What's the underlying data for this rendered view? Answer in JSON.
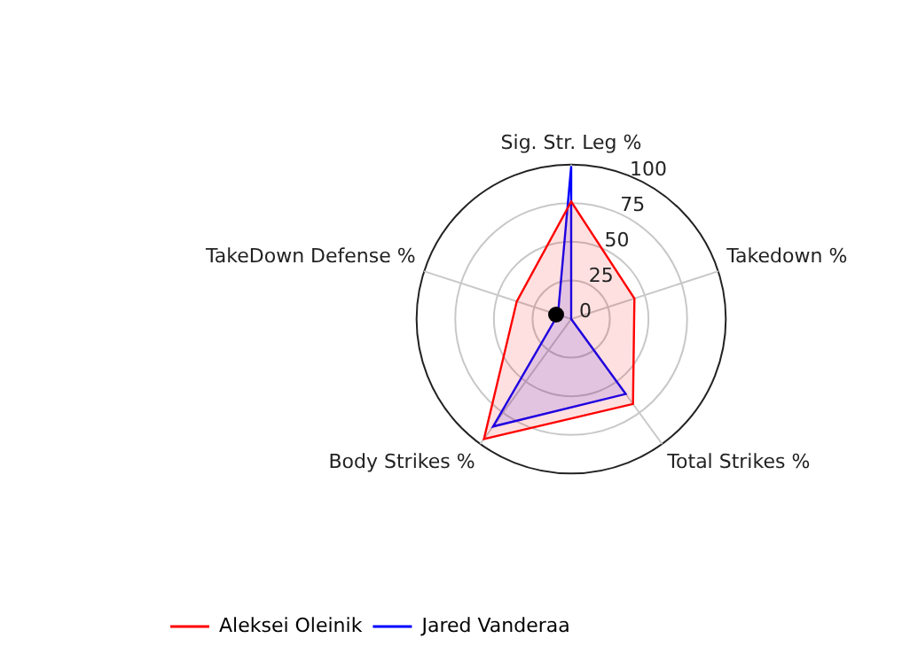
{
  "chart_data": {
    "type": "radar",
    "categories": [
      "Sig. Str. Leg %",
      "Takedown %",
      "Total Strikes %",
      "Body Strikes %",
      "TakeDown Defense %"
    ],
    "series": [
      {
        "name": "Aleksei Oleinik",
        "color": "#ff0000",
        "values": [
          76,
          43,
          68,
          96,
          37
        ]
      },
      {
        "name": "Jared Vanderaa",
        "color": "#0000ff",
        "values": [
          99,
          0,
          60,
          86,
          9
        ]
      }
    ],
    "ylim": [
      0,
      100
    ],
    "yticks": [
      0,
      25,
      50,
      75,
      100
    ],
    "grid": true,
    "legend": "bottom left"
  }
}
